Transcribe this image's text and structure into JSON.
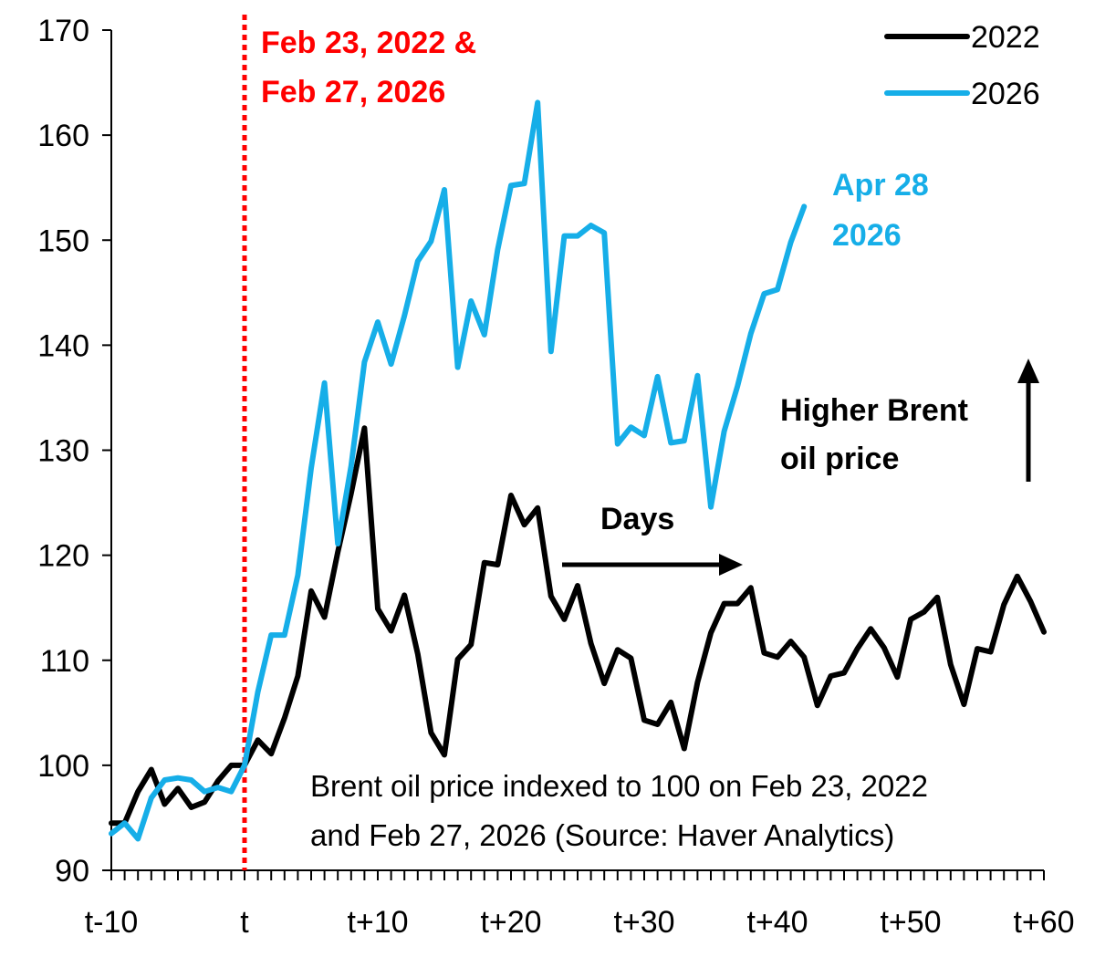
{
  "chart_data": {
    "type": "line",
    "title": "",
    "xlabel": "",
    "ylabel": "",
    "ylim": [
      90,
      170
    ],
    "y_ticks": [
      90,
      100,
      110,
      120,
      130,
      140,
      150,
      160,
      170
    ],
    "xlim": [
      -10,
      60
    ],
    "x_tick_labels": [
      {
        "x": -10,
        "label": "t-10"
      },
      {
        "x": 0,
        "label": "t"
      },
      {
        "x": 10,
        "label": "t+10"
      },
      {
        "x": 20,
        "label": "t+20"
      },
      {
        "x": 30,
        "label": "t+30"
      },
      {
        "x": 40,
        "label": "t+40"
      },
      {
        "x": 50,
        "label": "t+50"
      },
      {
        "x": 60,
        "label": "t+60"
      }
    ],
    "legend_position": "top-right",
    "grid": false,
    "series": [
      {
        "name": "2022",
        "color": "#000000",
        "x": [
          -10,
          -9,
          -8,
          -7,
          -6,
          -5,
          -4,
          -3,
          -2,
          -1,
          0,
          1,
          2,
          3,
          4,
          5,
          6,
          7,
          8,
          9,
          10,
          11,
          12,
          13,
          14,
          15,
          16,
          17,
          18,
          19,
          20,
          21,
          22,
          23,
          24,
          25,
          26,
          27,
          28,
          29,
          30,
          31,
          32,
          33,
          34,
          35,
          36,
          37,
          38,
          39,
          40,
          41,
          42,
          43,
          44,
          45,
          46,
          47,
          48,
          49,
          50,
          51,
          52,
          53,
          54,
          55,
          56,
          57,
          58,
          59,
          60
        ],
        "values": [
          94.5,
          94.5,
          97.5,
          99.6,
          96.3,
          97.8,
          96.0,
          96.5,
          98.5,
          100.0,
          100.0,
          102.4,
          101.1,
          104.5,
          108.5,
          116.6,
          114.1,
          120.3,
          125.9,
          132.1,
          114.9,
          112.8,
          116.2,
          110.6,
          103.1,
          101.0,
          110.1,
          111.5,
          119.3,
          119.1,
          125.7,
          122.9,
          124.5,
          116.1,
          113.9,
          117.1,
          111.6,
          107.8,
          111.0,
          110.2,
          104.3,
          103.9,
          106.0,
          101.6,
          107.9,
          112.6,
          115.4,
          115.4,
          116.9,
          110.7,
          110.3,
          111.8,
          110.3,
          105.7,
          108.5,
          108.8,
          111.1,
          113.0,
          111.2,
          108.4,
          113.9,
          114.6,
          116.0,
          109.6,
          105.8,
          111.1,
          110.8,
          115.3,
          118.0,
          115.6,
          112.7
        ]
      },
      {
        "name": "2026",
        "color": "#16AEE8",
        "x": [
          -10,
          -9,
          -8,
          -7,
          -6,
          -5,
          -4,
          -3,
          -2,
          -1,
          0,
          1,
          2,
          3,
          4,
          5,
          6,
          7,
          8,
          9,
          10,
          11,
          12,
          13,
          14,
          15,
          16,
          17,
          18,
          19,
          20,
          21,
          22,
          23,
          24,
          25,
          26,
          27,
          28,
          29,
          30,
          31,
          32,
          33,
          34,
          35,
          36,
          37,
          38,
          39,
          40,
          41,
          42
        ],
        "values": [
          93.5,
          94.5,
          93.0,
          96.9,
          98.6,
          98.8,
          98.6,
          97.5,
          97.9,
          97.5,
          100.0,
          107.0,
          112.4,
          112.4,
          118.1,
          128.3,
          136.4,
          121.1,
          128.5,
          138.4,
          142.2,
          138.2,
          142.8,
          148.0,
          149.9,
          154.8,
          137.9,
          144.2,
          141.0,
          149.1,
          155.2,
          155.4,
          163.1,
          139.4,
          150.4,
          150.4,
          151.4,
          150.7,
          130.6,
          132.2,
          131.4,
          137.0,
          130.7,
          130.9,
          137.1,
          124.6,
          131.8,
          136.1,
          141.1,
          144.9,
          145.3,
          149.8,
          153.2
        ]
      }
    ],
    "vertical_marker": {
      "x": 0,
      "color": "#FF0000",
      "label_lines": [
        "Feb 23, 2022 &",
        "Feb 27, 2026"
      ]
    },
    "annotations": {
      "end_label_lines": [
        "Apr 28",
        "2026"
      ],
      "days_label": "Days",
      "higher_label_lines": [
        "Higher Brent",
        "oil price"
      ],
      "note_lines": [
        "Brent oil price indexed to 100 on Feb 23, 2022",
        "and Feb 27, 2026 (Source: Haver Analytics)"
      ]
    }
  }
}
